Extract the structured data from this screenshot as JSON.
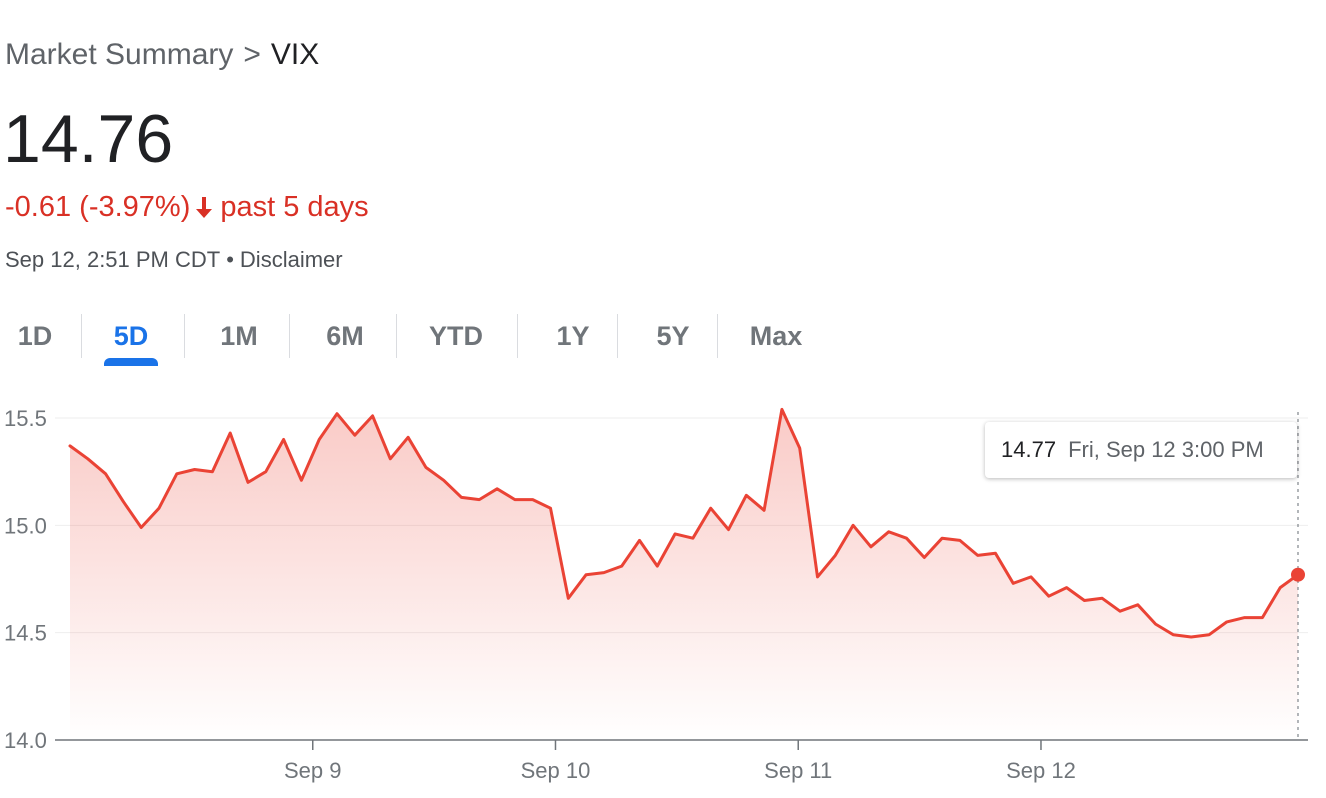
{
  "breadcrumb": {
    "parent": "Market Summary",
    "separator": ">",
    "current": "VIX"
  },
  "quote": {
    "price": "14.76",
    "change": "-0.61 (-3.97%)",
    "period": "past 5 days",
    "timestamp": "Sep 12, 2:51 PM CDT",
    "bullet": "•",
    "disclaimer": "Disclaimer"
  },
  "tabs": [
    {
      "label": "1D",
      "active": false
    },
    {
      "label": "5D",
      "active": true
    },
    {
      "label": "1M",
      "active": false
    },
    {
      "label": "6M",
      "active": false
    },
    {
      "label": "YTD",
      "active": false
    },
    {
      "label": "1Y",
      "active": false
    },
    {
      "label": "5Y",
      "active": false
    },
    {
      "label": "Max",
      "active": false
    }
  ],
  "tooltip": {
    "value": "14.77",
    "date": "Fri, Sep 12 3:00 PM"
  },
  "colors": {
    "line": "#ea4335",
    "fill": "#ea4335",
    "down": "#d93025",
    "active_tab": "#1a73e8",
    "grid": "#eeeeee"
  },
  "chart_data": {
    "type": "area",
    "ylim": [
      14.0,
      15.5
    ],
    "y_ticks": [
      "15.5",
      "15.0",
      "14.5",
      "14.0"
    ],
    "x_ticks": [
      "Sep 9",
      "Sep 10",
      "Sep 11",
      "Sep 12"
    ],
    "x_range": [
      0,
      86
    ],
    "x_tick_positions": [
      17,
      34,
      51,
      68
    ],
    "series": [
      {
        "values": [
          15.37,
          15.31,
          15.24,
          15.11,
          14.99,
          15.08,
          15.24,
          15.26,
          15.25,
          15.43,
          15.2,
          15.25,
          15.4,
          15.21,
          15.4,
          15.52,
          15.42,
          15.51,
          15.31,
          15.41,
          15.27,
          15.21,
          15.13,
          15.12,
          15.17,
          15.12,
          15.12,
          15.08,
          14.66,
          14.77,
          14.78,
          14.81,
          14.93,
          14.81,
          14.96,
          14.94,
          15.08,
          14.98,
          15.14,
          15.07,
          15.54,
          15.36,
          14.76,
          14.86,
          15.0,
          14.9,
          14.97,
          14.94,
          14.85,
          14.94,
          14.93,
          14.86,
          14.87,
          14.73,
          14.76,
          14.67,
          14.71,
          14.65,
          14.66,
          14.6,
          14.63,
          14.54,
          14.49,
          14.48,
          14.49,
          14.55,
          14.57,
          14.57,
          14.71,
          14.77
        ]
      }
    ],
    "marker_value": 14.77
  }
}
